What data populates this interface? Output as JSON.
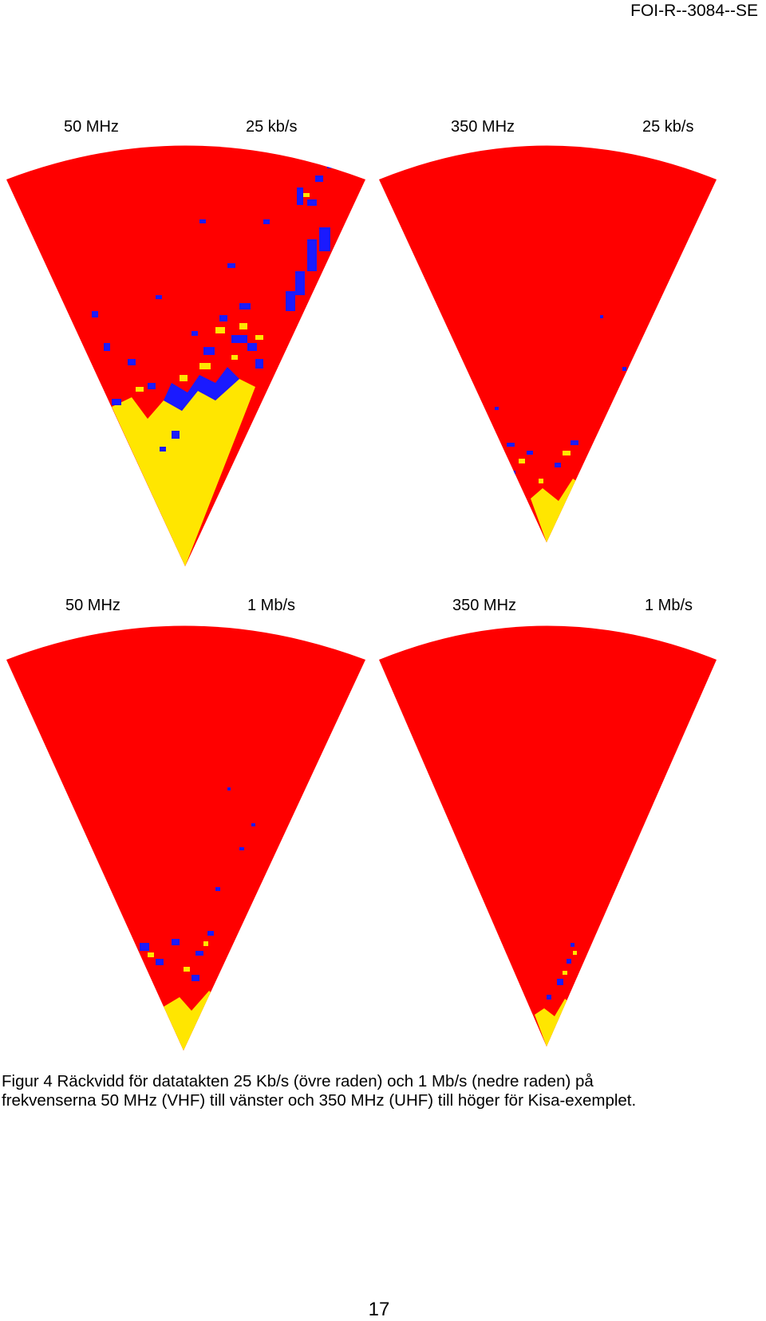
{
  "header": {
    "report_id": "FOI-R--3084--SE"
  },
  "panels": [
    {
      "frequency": "50 MHz",
      "data_rate": "25 kb/s"
    },
    {
      "frequency": "350 MHz",
      "data_rate": "25 kb/s"
    },
    {
      "frequency": "50 MHz",
      "data_rate": "1 Mb/s"
    },
    {
      "frequency": "350 MHz",
      "data_rate": "1 Mb/s"
    }
  ],
  "colors": {
    "out_of_range": "#ff0000",
    "marginal": "#1a1aff",
    "in_range": "#ffe600"
  },
  "caption": {
    "line1": "Figur 4 Räckvidd för datatakten 25 Kb/s (övre raden) och 1 Mb/s (nedre raden) på",
    "line2": "frekvenserna 50 MHz (VHF) till vänster och 350 MHz (UHF) till höger för Kisa-exemplet."
  },
  "page_number": "17"
}
